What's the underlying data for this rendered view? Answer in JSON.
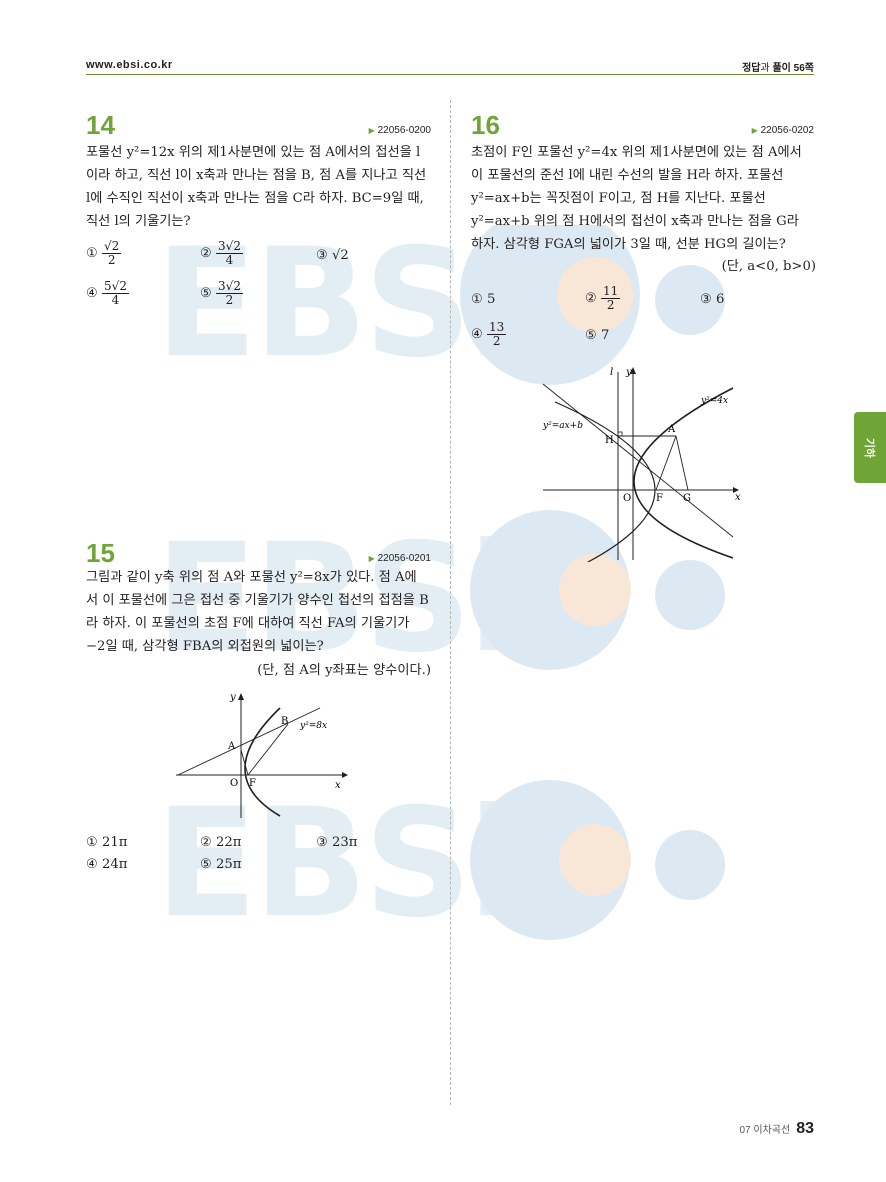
{
  "header": {
    "url": "www.ebsi.co.kr",
    "answer_ref_prefix": "정답",
    "answer_ref_mid": "과",
    "answer_ref_suffix": "풀이 56쪽"
  },
  "side_tab": {
    "label": "기하"
  },
  "watermark": {
    "text": "EBSi"
  },
  "footer": {
    "chapter": "07 이차곡선",
    "page": "83"
  },
  "q14": {
    "number": "14",
    "code": "22056-0200",
    "line1": "포물선 y²=12x 위의 제1사분면에 있는 점 A에서의 접선을 l",
    "line2": "이라 하고, 직선 l이 x축과 만나는 점을 B, 점 A를 지나고 직선",
    "line3": "l에 수직인 직선이 x축과 만나는 점을 C라 하자. BC=9일 때,",
    "line4": "직선 l의 기울기는?",
    "choices": [
      {
        "mark": "①",
        "num": "√2",
        "den": "2"
      },
      {
        "mark": "②",
        "num": "3√2",
        "den": "4"
      },
      {
        "mark": "③",
        "text": "√2"
      },
      {
        "mark": "④",
        "num": "5√2",
        "den": "4"
      },
      {
        "mark": "⑤",
        "num": "3√2",
        "den": "2"
      }
    ]
  },
  "q15": {
    "number": "15",
    "code": "22056-0201",
    "line1": "그림과 같이 y축 위의 점 A와 포물선 y²=8x가 있다. 점 A에",
    "line2": "서 이 포물선에 그은 접선 중 기울기가 양수인 접선의 접점을 B",
    "line3": "라 하자. 이 포물선의 초점 F에 대하여 직선 FA의 기울기가",
    "line4": "−2일 때, 삼각형 FBA의 외접원의 넓이는?",
    "condition": "(단, 점 A의 y좌표는 양수이다.)",
    "figure": {
      "y_label": "y",
      "x_label": "x",
      "o_label": "O",
      "f_label": "F",
      "a_label": "A",
      "b_label": "B",
      "curve_label": "y²=8x"
    },
    "choices": [
      {
        "mark": "①",
        "text": "21π"
      },
      {
        "mark": "②",
        "text": "22π"
      },
      {
        "mark": "③",
        "text": "23π"
      },
      {
        "mark": "④",
        "text": "24π"
      },
      {
        "mark": "⑤",
        "text": "25π"
      }
    ]
  },
  "q16": {
    "number": "16",
    "code": "22056-0202",
    "line1": "초점이 F인 포물선 y²=4x 위의 제1사분면에 있는 점 A에서",
    "line2": "이 포물선의 준선 l에 내린 수선의 발을 H라 하자. 포물선",
    "line3": "y²=ax+b는 꼭짓점이 F이고, 점 H를 지난다. 포물선",
    "line4": "y²=ax+b 위의 점 H에서의 접선이 x축과 만나는 점을 G라",
    "line5": "하자. 삼각형 FGA의 넓이가 3일 때, 선분 HG의 길이는?",
    "condition": "(단, a<0, b>0)",
    "figure": {
      "l_label": "l",
      "y_label": "y",
      "x_label": "x",
      "o_label": "O",
      "f_label": "F",
      "g_label": "G",
      "a_label": "A",
      "h_label": "H",
      "curve1_label": "y²=4x",
      "curve2_label": "y²=ax+b"
    },
    "choices": [
      {
        "mark": "①",
        "text": "5"
      },
      {
        "mark": "②",
        "num": "11",
        "den": "2"
      },
      {
        "mark": "③",
        "text": "6"
      },
      {
        "mark": "④",
        "num": "13",
        "den": "2"
      },
      {
        "mark": "⑤",
        "text": "7"
      }
    ]
  }
}
